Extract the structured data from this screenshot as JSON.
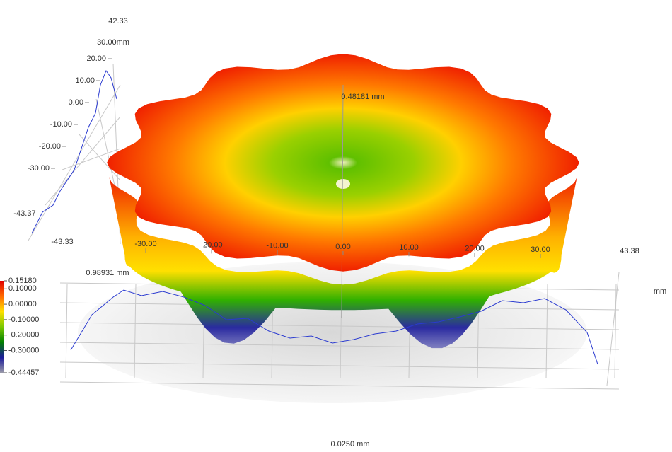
{
  "chart_data": {
    "type": "surface3d",
    "texts": {
      "top_value": "42.33",
      "y_axis_max": "30.00mm",
      "y_axis_min_left": "-43.37",
      "y_axis_min": "-43.33",
      "x_axis_max": "43.38",
      "x_unit": "mm",
      "center_label": "0.48181 mm",
      "profile_label": "0.98931 mm",
      "bottom_label": "0.0250 mm"
    },
    "yticks": [
      {
        "value": 20,
        "label": "20.00"
      },
      {
        "value": 10,
        "label": "10.00"
      },
      {
        "value": 0,
        "label": "0.00"
      },
      {
        "value": -10,
        "label": "-10.00"
      },
      {
        "value": -20,
        "label": "-20.00"
      },
      {
        "value": -30,
        "label": "-30.00"
      }
    ],
    "xticks": [
      {
        "value": -30,
        "label": "-30.00"
      },
      {
        "value": -20,
        "label": "-20.00"
      },
      {
        "value": -10,
        "label": "-10.00"
      },
      {
        "value": 0,
        "label": "0.00"
      },
      {
        "value": 10,
        "label": "10.00"
      },
      {
        "value": 20,
        "label": "20.00"
      },
      {
        "value": 30,
        "label": "30.00"
      }
    ],
    "colorbar": {
      "lim": [
        -0.44457,
        0.1518
      ],
      "colors": [
        "#e00000",
        "#ff6a00",
        "#ffe000",
        "#7cc800",
        "#008000",
        "#1a1a9a",
        "#9a9aa8"
      ],
      "ticks": [
        {
          "value": 0.1518,
          "label": "0.15180"
        },
        {
          "value": 0.1,
          "label": "0.10000"
        },
        {
          "value": 0,
          "label": "0.00000"
        },
        {
          "value": -0.1,
          "label": "-0.10000"
        },
        {
          "value": -0.2,
          "label": "-0.20000"
        },
        {
          "value": -0.3,
          "label": "-0.30000"
        },
        {
          "value": -0.44457,
          "label": "-0.44457"
        }
      ]
    }
  }
}
